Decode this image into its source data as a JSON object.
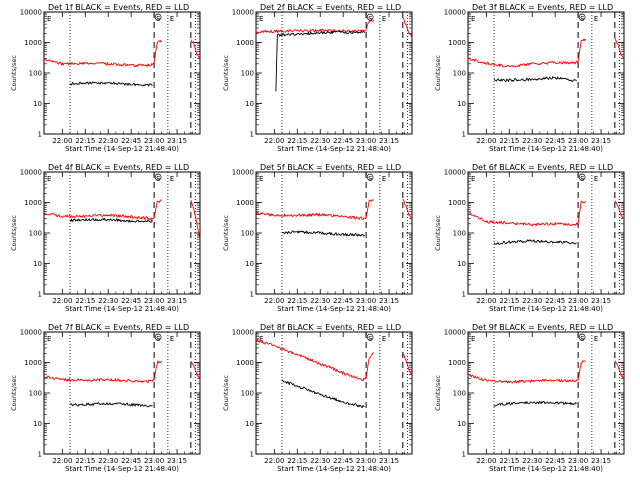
{
  "figure": {
    "xlabel": "Start Time (14-Sep-12 21:48:40)",
    "ylabel": "Counts/sec",
    "x_tick_labels": [
      "22:00",
      "22:15",
      "22:30",
      "22:45",
      "23:00",
      "23:15"
    ],
    "y_tick_labels": [
      "1",
      "10",
      "100",
      "1000",
      "10000"
    ],
    "colors": {
      "events": "#000000",
      "lld": "#ff0000",
      "frame": "#000000",
      "background": "#ffffff"
    },
    "marker_labels": [
      "S",
      "E"
    ]
  },
  "chart_data": [
    {
      "type": "line",
      "title": "Det 1f BLACK = Events, RED = LLD",
      "xlabel": "Start Time (14-Sep-12 21:48:40)",
      "ylabel": "Counts/sec",
      "x_range": [
        "21:48",
        "23:30"
      ],
      "ylim": [
        1,
        10000
      ],
      "y_scale": "log",
      "time_markers": {
        "dotted": [
          "22:05",
          "23:09",
          "23:27"
        ],
        "dashed": [
          "23:00",
          "23:24"
        ]
      },
      "series": [
        {
          "color": "#ff0000",
          "x": [
            "21:48",
            "22:00",
            "22:15",
            "22:30",
            "22:45",
            "22:58",
            "23:00",
            "23:02",
            "23:05"
          ],
          "values": [
            290,
            200,
            210,
            200,
            180,
            180,
            220,
            1000,
            1100
          ]
        },
        {
          "color": "#ff0000",
          "x": [
            "23:24",
            "23:26",
            "23:28",
            "23:30"
          ],
          "values": [
            1200,
            900,
            400,
            300
          ]
        },
        {
          "color": "#000000",
          "x": [
            "22:05",
            "22:15",
            "22:30",
            "22:45",
            "22:59"
          ],
          "values": [
            45,
            46,
            48,
            42,
            40
          ]
        }
      ]
    },
    {
      "type": "line",
      "title": "Det 2f BLACK = Events, RED = LLD",
      "xlabel": "Start Time (14-Sep-12 21:48:40)",
      "ylabel": "Counts/sec",
      "x_range": [
        "21:48",
        "23:30"
      ],
      "ylim": [
        1,
        10000
      ],
      "y_scale": "log",
      "time_markers": {
        "dotted": [
          "22:05",
          "23:09",
          "23:27"
        ],
        "dashed": [
          "23:00",
          "23:24"
        ]
      },
      "series": [
        {
          "color": "#ff0000",
          "x": [
            "21:48",
            "22:00",
            "22:15",
            "22:30",
            "22:45",
            "22:59",
            "23:00",
            "23:02",
            "23:05"
          ],
          "values": [
            2300,
            2300,
            2400,
            2500,
            2400,
            2400,
            2600,
            5000,
            5500
          ]
        },
        {
          "color": "#ff0000",
          "x": [
            "23:24",
            "23:26",
            "23:28",
            "23:30"
          ],
          "values": [
            6000,
            4000,
            2000,
            1500
          ]
        },
        {
          "color": "#000000",
          "x": [
            "22:01",
            "22:02",
            "22:15",
            "22:30",
            "22:45",
            "22:59"
          ],
          "values": [
            25,
            1800,
            1900,
            2100,
            2200,
            2100
          ]
        }
      ]
    },
    {
      "type": "line",
      "title": "Det 3f BLACK = Events, RED = LLD",
      "xlabel": "Start Time (14-Sep-12 21:48:40)",
      "ylabel": "Counts/sec",
      "x_range": [
        "21:48",
        "23:30"
      ],
      "ylim": [
        1,
        10000
      ],
      "y_scale": "log",
      "time_markers": {
        "dotted": [
          "22:05",
          "23:09",
          "23:27"
        ],
        "dashed": [
          "23:00",
          "23:24"
        ]
      },
      "series": [
        {
          "color": "#ff0000",
          "x": [
            "21:48",
            "22:00",
            "22:15",
            "22:30",
            "22:45",
            "22:58",
            "23:00",
            "23:02",
            "23:05"
          ],
          "values": [
            300,
            210,
            160,
            200,
            220,
            210,
            240,
            1100,
            1200
          ]
        },
        {
          "color": "#ff0000",
          "x": [
            "23:24",
            "23:26",
            "23:28",
            "23:30"
          ],
          "values": [
            1300,
            900,
            400,
            300
          ]
        },
        {
          "color": "#000000",
          "x": [
            "22:05",
            "22:15",
            "22:30",
            "22:45",
            "22:59"
          ],
          "values": [
            60,
            58,
            62,
            70,
            55
          ]
        }
      ]
    },
    {
      "type": "line",
      "title": "Det 4f BLACK = Events, RED = LLD",
      "xlabel": "Start Time (14-Sep-12 21:48:40)",
      "ylabel": "Counts/sec",
      "x_range": [
        "21:48",
        "23:30"
      ],
      "ylim": [
        1,
        10000
      ],
      "y_scale": "log",
      "time_markers": {
        "dotted": [
          "22:05",
          "23:09",
          "23:27"
        ],
        "dashed": [
          "23:00",
          "23:24"
        ]
      },
      "series": [
        {
          "color": "#ff0000",
          "x": [
            "21:48",
            "22:00",
            "22:15",
            "22:30",
            "22:45",
            "22:58",
            "23:00",
            "23:02",
            "23:05"
          ],
          "values": [
            450,
            350,
            360,
            380,
            340,
            300,
            320,
            1000,
            1200
          ]
        },
        {
          "color": "#ff0000",
          "x": [
            "23:24",
            "23:26",
            "23:28",
            "23:30"
          ],
          "values": [
            1200,
            600,
            200,
            60
          ]
        },
        {
          "color": "#000000",
          "x": [
            "22:05",
            "22:15",
            "22:30",
            "22:45",
            "22:59"
          ],
          "values": [
            260,
            270,
            280,
            250,
            240
          ]
        }
      ]
    },
    {
      "type": "line",
      "title": "Det 5f BLACK = Events, RED = LLD",
      "xlabel": "Start Time (14-Sep-12 21:48:40)",
      "ylabel": "Counts/sec",
      "x_range": [
        "21:48",
        "23:30"
      ],
      "ylim": [
        1,
        10000
      ],
      "y_scale": "log",
      "time_markers": {
        "dotted": [
          "22:05",
          "23:09",
          "23:27"
        ],
        "dashed": [
          "23:00",
          "23:24"
        ]
      },
      "series": [
        {
          "color": "#ff0000",
          "x": [
            "21:48",
            "22:00",
            "22:15",
            "22:30",
            "22:45",
            "22:58",
            "23:00",
            "23:02",
            "23:05"
          ],
          "values": [
            460,
            380,
            380,
            400,
            340,
            300,
            320,
            1100,
            1200
          ]
        },
        {
          "color": "#ff0000",
          "x": [
            "23:24",
            "23:26",
            "23:28",
            "23:30"
          ],
          "values": [
            1200,
            800,
            400,
            300
          ]
        },
        {
          "color": "#000000",
          "x": [
            "22:05",
            "22:15",
            "22:30",
            "22:45",
            "22:59"
          ],
          "values": [
            100,
            110,
            100,
            90,
            85
          ]
        }
      ]
    },
    {
      "type": "line",
      "title": "Det 6f BLACK = Events, RED = LLD",
      "xlabel": "Start Time (14-Sep-12 21:48:40)",
      "ylabel": "Counts/sec",
      "x_range": [
        "21:48",
        "23:30"
      ],
      "ylim": [
        1,
        10000
      ],
      "y_scale": "log",
      "time_markers": {
        "dotted": [
          "22:05",
          "23:09",
          "23:27"
        ],
        "dashed": [
          "23:00",
          "23:24"
        ]
      },
      "series": [
        {
          "color": "#ff0000",
          "x": [
            "21:48",
            "22:00",
            "22:15",
            "22:30",
            "22:45",
            "22:58",
            "23:00",
            "23:02",
            "23:05"
          ],
          "values": [
            500,
            230,
            210,
            190,
            200,
            190,
            210,
            1000,
            1100
          ]
        },
        {
          "color": "#ff0000",
          "x": [
            "23:24",
            "23:26",
            "23:28",
            "23:30"
          ],
          "values": [
            1200,
            800,
            400,
            300
          ]
        },
        {
          "color": "#000000",
          "x": [
            "22:05",
            "22:15",
            "22:30",
            "22:45",
            "22:59"
          ],
          "values": [
            45,
            50,
            55,
            50,
            48
          ]
        }
      ]
    },
    {
      "type": "line",
      "title": "Det 7f BLACK = Events, RED = LLD",
      "xlabel": "Start Time (14-Sep-12 21:48:40)",
      "ylabel": "Counts/sec",
      "x_range": [
        "21:48",
        "23:30"
      ],
      "ylim": [
        1,
        10000
      ],
      "y_scale": "log",
      "time_markers": {
        "dotted": [
          "22:05",
          "23:09",
          "23:27"
        ],
        "dashed": [
          "23:00",
          "23:24"
        ]
      },
      "series": [
        {
          "color": "#ff0000",
          "x": [
            "21:48",
            "22:00",
            "22:15",
            "22:30",
            "22:45",
            "22:58",
            "23:00",
            "23:02",
            "23:05"
          ],
          "values": [
            350,
            270,
            260,
            270,
            250,
            240,
            270,
            1000,
            1100
          ]
        },
        {
          "color": "#ff0000",
          "x": [
            "23:24",
            "23:26",
            "23:28",
            "23:30"
          ],
          "values": [
            1200,
            800,
            400,
            300
          ]
        },
        {
          "color": "#000000",
          "x": [
            "22:05",
            "22:15",
            "22:30",
            "22:45",
            "22:59"
          ],
          "values": [
            40,
            42,
            45,
            42,
            38
          ]
        }
      ]
    },
    {
      "type": "line",
      "title": "Det 8f BLACK = Events, RED = LLD",
      "xlabel": "Start Time (14-Sep-12 21:48:40)",
      "ylabel": "Counts/sec",
      "x_range": [
        "21:48",
        "23:30"
      ],
      "ylim": [
        1,
        10000
      ],
      "y_scale": "log",
      "time_markers": {
        "dotted": [
          "22:05",
          "23:09",
          "23:27"
        ],
        "dashed": [
          "23:00",
          "23:24"
        ]
      },
      "series": [
        {
          "color": "#ff0000",
          "x": [
            "21:48",
            "22:00",
            "22:15",
            "22:30",
            "22:45",
            "22:58",
            "23:00",
            "23:02",
            "23:05"
          ],
          "values": [
            5500,
            3500,
            1800,
            900,
            450,
            270,
            300,
            1500,
            2000
          ]
        },
        {
          "color": "#ff0000",
          "x": [
            "23:24",
            "23:26",
            "23:28",
            "23:30"
          ],
          "values": [
            2000,
            1200,
            600,
            400
          ]
        },
        {
          "color": "#000000",
          "x": [
            "22:05",
            "22:15",
            "22:30",
            "22:45",
            "22:59"
          ],
          "values": [
            250,
            170,
            90,
            50,
            35
          ]
        }
      ]
    },
    {
      "type": "line",
      "title": "Det 9f BLACK = Events, RED = LLD",
      "xlabel": "Start Time (14-Sep-12 21:48:40)",
      "ylabel": "Counts/sec",
      "x_range": [
        "21:48",
        "23:30"
      ],
      "ylim": [
        1,
        10000
      ],
      "y_scale": "log",
      "time_markers": {
        "dotted": [
          "22:05",
          "23:09",
          "23:27"
        ],
        "dashed": [
          "23:00",
          "23:24"
        ]
      },
      "series": [
        {
          "color": "#ff0000",
          "x": [
            "21:48",
            "22:00",
            "22:15",
            "22:30",
            "22:45",
            "22:58",
            "23:00",
            "23:02",
            "23:05"
          ],
          "values": [
            400,
            250,
            230,
            250,
            260,
            240,
            260,
            1000,
            1100
          ]
        },
        {
          "color": "#ff0000",
          "x": [
            "23:24",
            "23:26",
            "23:28",
            "23:30"
          ],
          "values": [
            1200,
            800,
            400,
            300
          ]
        },
        {
          "color": "#000000",
          "x": [
            "22:05",
            "22:15",
            "22:30",
            "22:45",
            "22:59"
          ],
          "values": [
            40,
            45,
            50,
            48,
            45
          ]
        }
      ]
    }
  ]
}
